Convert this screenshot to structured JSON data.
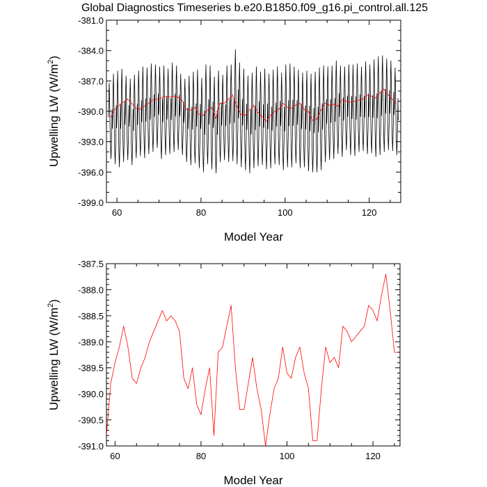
{
  "title": "Global Diagnostics Timeseries b.e20.B1850.f09_g16.pi_control.all.125",
  "chart_data": [
    {
      "type": "line",
      "xlabel": "Model Year",
      "ylabel": "Upwelling LW (W/m²)",
      "ylabel_base": "Upwelling LW (W/m",
      "ylabel_sup": "2",
      "ylabel_close": ")",
      "xlim": [
        57.5,
        127.5
      ],
      "ylim": [
        -399.0,
        -381.0
      ],
      "xticks": [
        60,
        80,
        100,
        120
      ],
      "xtick_labels": [
        "60",
        "80",
        "100",
        "120"
      ],
      "yticks": [
        -381,
        -384,
        -387,
        -390,
        -393,
        -396,
        -399
      ],
      "ytick_labels": [
        "-381.0",
        "-384.0",
        "-387.0",
        "-390.0",
        "-393.0",
        "-396.0",
        "-399.0"
      ],
      "series": [
        {
          "color": "#000000",
          "monthly_start": 58.0,
          "monthly_step": 0.08333,
          "annual_cycle_max": [
            -387.2,
            -386.3,
            -386.0,
            -385.8,
            -386.5,
            -386.8,
            -386.4,
            -386.0,
            -385.6,
            -385.7,
            -385.3,
            -385.4,
            -385.6,
            -385.5,
            -385.8,
            -385.2,
            -385.5,
            -386.3,
            -386.8,
            -386.5,
            -386.1,
            -385.9,
            -386.7,
            -385.4,
            -385.5,
            -386.6,
            -386.0,
            -386.4,
            -385.5,
            -385.4,
            -383.9,
            -385.2,
            -385.8,
            -386.5,
            -386.2,
            -385.6,
            -386.1,
            -385.8,
            -386.3,
            -385.9,
            -385.6,
            -386.2,
            -385.4,
            -385.3,
            -385.6,
            -385.9,
            -386.2,
            -386.0,
            -386.3,
            -386.1,
            -385.7,
            -385.5,
            -385.6,
            -385.5,
            -385.0,
            -385.5,
            -385.6,
            -385.4,
            -385.4,
            -385.3,
            -385.6,
            -385.1,
            -385.4,
            -384.9,
            -384.6,
            -384.5,
            -384.8,
            -385.0,
            -385.7
          ],
          "annual_cycle_min": [
            -394.7,
            -395.2,
            -395.5,
            -395.0,
            -394.8,
            -395.3,
            -394.6,
            -394.4,
            -394.6,
            -394.2,
            -394.0,
            -393.6,
            -394.7,
            -394.3,
            -394.2,
            -394.0,
            -393.8,
            -394.3,
            -395.0,
            -395.3,
            -395.1,
            -395.6,
            -396.0,
            -395.2,
            -395.7,
            -396.1,
            -395.0,
            -394.8,
            -395.0,
            -394.9,
            -395.2,
            -395.5,
            -395.8,
            -396.1,
            -395.6,
            -395.4,
            -395.3,
            -395.7,
            -395.6,
            -395.2,
            -395.3,
            -395.8,
            -395.5,
            -395.5,
            -395.1,
            -395.6,
            -395.5,
            -395.9,
            -396.0,
            -396.0,
            -395.8,
            -395.0,
            -394.8,
            -394.7,
            -394.2,
            -394.5,
            -393.8,
            -394.3,
            -394.4,
            -394.0,
            -393.9,
            -394.2,
            -394.1,
            -394.5,
            -394.3,
            -394.0,
            -393.8,
            -393.9,
            -394.3
          ]
        },
        {
          "color": "#ff0000",
          "x": [
            58.5,
            59.5,
            60.5,
            61.5,
            62.5,
            63.5,
            64.5,
            65.5,
            66.5,
            67.5,
            68.5,
            69.5,
            70.5,
            71.5,
            72.5,
            73.5,
            74.5,
            75.5,
            76.5,
            77.5,
            78.5,
            79.5,
            80.5,
            81.5,
            82.5,
            83.5,
            84.5,
            85.5,
            86.5,
            87.5,
            88.5,
            89.5,
            90.5,
            91.5,
            92.5,
            93.5,
            94.5,
            95.5,
            96.5,
            97.5,
            98.5,
            99.5,
            100.5,
            101.5,
            102.5,
            103.5,
            104.5,
            105.5,
            106.5,
            107.5,
            108.5,
            109.5,
            110.5,
            111.5,
            112.5,
            113.5,
            114.5,
            115.5,
            116.5,
            117.5,
            118.5,
            119.5,
            120.5,
            121.5,
            122.5,
            123.5,
            124.5,
            125.5,
            126.5
          ],
          "values": [
            -390.6,
            -389.8,
            -389.4,
            -389.1,
            -388.8,
            -389.2,
            -389.7,
            -389.8,
            -389.5,
            -389.2,
            -388.9,
            -388.8,
            -388.7,
            -388.5,
            -388.6,
            -388.5,
            -388.6,
            -388.9,
            -389.8,
            -389.9,
            -389.6,
            -390.3,
            -390.4,
            -389.9,
            -389.6,
            -390.7,
            -389.2,
            -389.2,
            -388.8,
            -388.4,
            -389.5,
            -390.3,
            -390.4,
            -389.9,
            -389.4,
            -390.1,
            -390.5,
            -391.0,
            -390.4,
            -390.0,
            -389.8,
            -389.2,
            -389.6,
            -389.7,
            -389.4,
            -389.2,
            -389.8,
            -390.0,
            -390.9,
            -390.8,
            -389.9,
            -389.2,
            -389.4,
            -389.3,
            -389.5,
            -388.9,
            -389.0,
            -389.1,
            -389.0,
            -388.9,
            -388.8,
            -388.4,
            -388.5,
            -388.7,
            -388.2,
            -387.8,
            -388.4,
            -388.8,
            -389.2
          ]
        }
      ]
    },
    {
      "type": "line",
      "xlabel": "Model Year",
      "ylabel": "Upwelling LW (W/m²)",
      "ylabel_base": "Upwelling LW (W/m",
      "ylabel_sup": "2",
      "ylabel_close": ")",
      "xlim": [
        58.0,
        126.3
      ],
      "ylim": [
        -391.0,
        -387.5
      ],
      "xticks": [
        60,
        80,
        100,
        120
      ],
      "xtick_labels": [
        "60",
        "80",
        "100",
        "120"
      ],
      "yticks": [
        -387.5,
        -388.0,
        -388.5,
        -389.0,
        -389.5,
        -390.0,
        -390.5,
        -391.0
      ],
      "ytick_labels": [
        "-387.5",
        "-388.0",
        "-388.5",
        "-389.0",
        "-389.5",
        "-390.0",
        "-390.5",
        "-391.0"
      ],
      "series": [
        {
          "color": "#ff0000",
          "x": [
            58.0,
            59.0,
            60.0,
            61.0,
            62.0,
            63.0,
            64.0,
            65.0,
            66.0,
            67.0,
            68.0,
            69.0,
            70.0,
            71.0,
            72.0,
            73.0,
            74.0,
            75.0,
            76.0,
            77.0,
            78.0,
            79.0,
            80.0,
            81.0,
            82.0,
            83.0,
            84.0,
            85.0,
            86.0,
            87.0,
            88.0,
            89.0,
            90.0,
            91.0,
            92.0,
            93.0,
            94.0,
            95.0,
            96.0,
            97.0,
            98.0,
            99.0,
            100.0,
            101.0,
            102.0,
            103.0,
            104.0,
            105.0,
            106.0,
            107.0,
            108.0,
            109.0,
            110.0,
            111.0,
            112.0,
            113.0,
            114.0,
            115.0,
            116.0,
            117.0,
            118.0,
            119.0,
            120.0,
            121.0,
            122.0,
            123.0,
            124.0,
            125.0,
            126.0
          ],
          "values": [
            -390.8,
            -389.8,
            -389.4,
            -389.1,
            -388.7,
            -389.1,
            -389.7,
            -389.8,
            -389.5,
            -389.3,
            -389.0,
            -388.8,
            -388.6,
            -388.4,
            -388.6,
            -388.5,
            -388.6,
            -388.8,
            -389.7,
            -389.9,
            -389.5,
            -390.2,
            -390.4,
            -389.9,
            -389.5,
            -390.8,
            -389.2,
            -389.1,
            -388.7,
            -388.3,
            -389.5,
            -390.3,
            -390.3,
            -389.8,
            -389.3,
            -389.9,
            -390.3,
            -391.0,
            -390.4,
            -389.9,
            -389.7,
            -389.1,
            -389.6,
            -389.7,
            -389.3,
            -389.1,
            -389.6,
            -389.9,
            -390.9,
            -390.9,
            -389.9,
            -389.1,
            -389.4,
            -389.3,
            -389.5,
            -388.7,
            -388.8,
            -389.0,
            -388.9,
            -388.8,
            -388.7,
            -388.3,
            -388.4,
            -388.6,
            -388.1,
            -387.7,
            -388.4,
            -389.2,
            -389.2
          ]
        }
      ]
    }
  ]
}
